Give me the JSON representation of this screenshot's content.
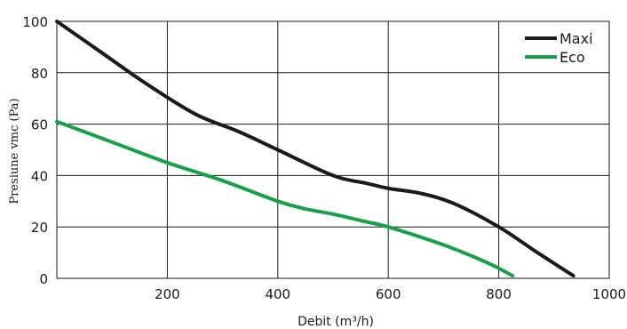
{
  "chart_data": {
    "type": "line",
    "title": "",
    "xlabel": "Debit (m³/h)",
    "ylabel": "Presiune vmc (Pa)",
    "xlim": [
      0,
      1000
    ],
    "ylim": [
      0,
      100
    ],
    "x_ticks": [
      200,
      400,
      600,
      800,
      1000
    ],
    "y_ticks": [
      0,
      20,
      40,
      60,
      80,
      100
    ],
    "grid": true,
    "legend_position": "top-right",
    "series": [
      {
        "name": "Maxi",
        "color": "#1a1a1a",
        "points": [
          [
            0,
            100
          ],
          [
            80,
            88
          ],
          [
            160,
            76
          ],
          [
            250,
            64
          ],
          [
            330,
            57
          ],
          [
            400,
            50
          ],
          [
            500,
            40
          ],
          [
            560,
            37
          ],
          [
            600,
            35
          ],
          [
            660,
            33
          ],
          [
            720,
            29
          ],
          [
            800,
            20
          ],
          [
            870,
            10
          ],
          [
            935,
            1
          ]
        ]
      },
      {
        "name": "Eco",
        "color": "#1a9e4a",
        "points": [
          [
            0,
            61
          ],
          [
            100,
            53
          ],
          [
            200,
            45
          ],
          [
            300,
            38
          ],
          [
            400,
            30
          ],
          [
            450,
            27
          ],
          [
            500,
            25
          ],
          [
            560,
            22
          ],
          [
            600,
            20
          ],
          [
            700,
            13
          ],
          [
            780,
            6
          ],
          [
            825,
            1
          ]
        ]
      }
    ]
  }
}
